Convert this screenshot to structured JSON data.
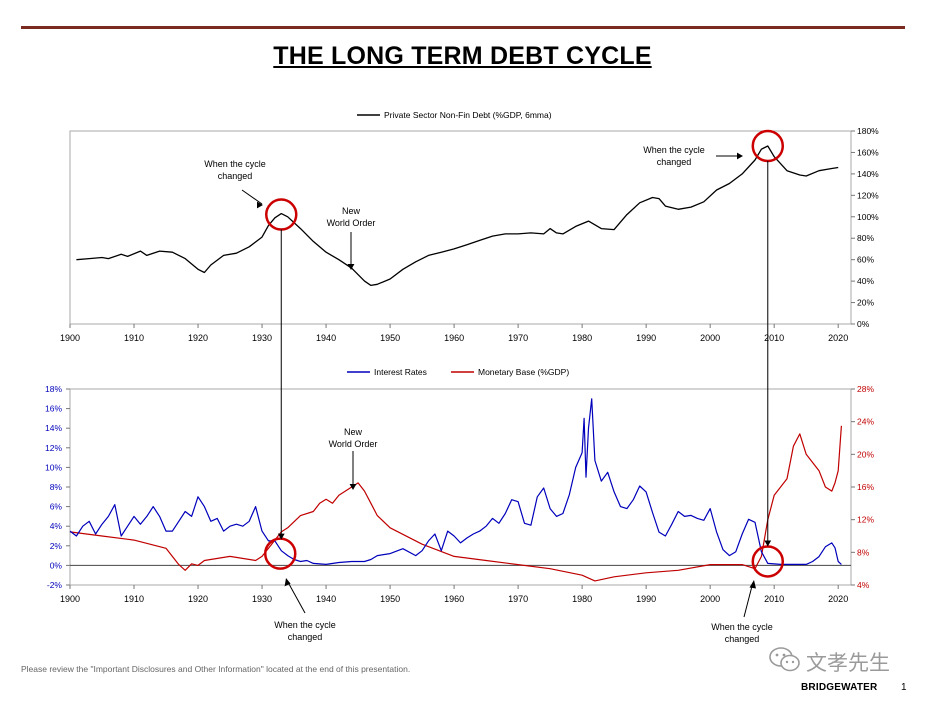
{
  "title": "THE LONG TERM DEBT CYCLE",
  "disclaimer": "Please review the \"Important Disclosures and Other Information\" located at the end of this presentation.",
  "brand": "BRIDGEWATER",
  "page_number": "1",
  "watermark": "文孝先生",
  "watermark_icon": "wechat-icon",
  "colors": {
    "rule": "#7a2a1e",
    "debt": "#000000",
    "rates": "#0000bb",
    "base": "#c00000",
    "circle": "#cc0000",
    "axis": "#777777"
  },
  "chart_data": [
    {
      "type": "line",
      "legend": {
        "position": "top-center",
        "items": [
          "Private Sector Non-Fin Debt (%GDP, 6mma)"
        ]
      },
      "xlim": [
        1900,
        2022
      ],
      "x_ticks": [
        "1900",
        "1910",
        "1920",
        "1930",
        "1940",
        "1950",
        "1960",
        "1970",
        "1980",
        "1990",
        "2000",
        "2010",
        "2020"
      ],
      "ylim": [
        0,
        180
      ],
      "y_axis_side": "right",
      "y_ticks": [
        "0%",
        "20%",
        "40%",
        "60%",
        "80%",
        "100%",
        "120%",
        "140%",
        "160%",
        "180%"
      ],
      "series": [
        {
          "name": "Private Sector Non-Fin Debt (%GDP, 6mma)",
          "color": "#000000",
          "points": [
            [
              1901,
              60
            ],
            [
              1903,
              61
            ],
            [
              1905,
              62
            ],
            [
              1906,
              61
            ],
            [
              1908,
              65
            ],
            [
              1909,
              63
            ],
            [
              1911,
              68
            ],
            [
              1912,
              64
            ],
            [
              1914,
              68
            ],
            [
              1916,
              67
            ],
            [
              1918,
              61
            ],
            [
              1920,
              51
            ],
            [
              1921,
              48
            ],
            [
              1922,
              55
            ],
            [
              1924,
              64
            ],
            [
              1926,
              66
            ],
            [
              1928,
              72
            ],
            [
              1930,
              81
            ],
            [
              1931,
              92
            ],
            [
              1932,
              99
            ],
            [
              1933,
              103
            ],
            [
              1934,
              100
            ],
            [
              1936,
              89
            ],
            [
              1938,
              77
            ],
            [
              1940,
              67
            ],
            [
              1942,
              60
            ],
            [
              1944,
              52
            ],
            [
              1946,
              40
            ],
            [
              1947,
              36
            ],
            [
              1948,
              37
            ],
            [
              1950,
              42
            ],
            [
              1952,
              51
            ],
            [
              1954,
              58
            ],
            [
              1956,
              64
            ],
            [
              1958,
              67
            ],
            [
              1960,
              70
            ],
            [
              1962,
              74
            ],
            [
              1964,
              78
            ],
            [
              1966,
              82
            ],
            [
              1968,
              84
            ],
            [
              1970,
              84
            ],
            [
              1972,
              85
            ],
            [
              1974,
              84
            ],
            [
              1975,
              89
            ],
            [
              1976,
              85
            ],
            [
              1977,
              84
            ],
            [
              1979,
              91
            ],
            [
              1981,
              96
            ],
            [
              1983,
              89
            ],
            [
              1985,
              88
            ],
            [
              1987,
              102
            ],
            [
              1989,
              113
            ],
            [
              1991,
              118
            ],
            [
              1992,
              117
            ],
            [
              1993,
              110
            ],
            [
              1995,
              107
            ],
            [
              1997,
              109
            ],
            [
              1999,
              114
            ],
            [
              2001,
              125
            ],
            [
              2003,
              131
            ],
            [
              2005,
              140
            ],
            [
              2007,
              153
            ],
            [
              2008,
              163
            ],
            [
              2009,
              166
            ],
            [
              2010,
              156
            ],
            [
              2012,
              143
            ],
            [
              2014,
              139
            ],
            [
              2015,
              138
            ],
            [
              2017,
              143
            ],
            [
              2019,
              145
            ],
            [
              2020,
              146
            ]
          ]
        }
      ],
      "annotations": [
        {
          "text": [
            "When the cycle",
            "changed"
          ],
          "x": 1933,
          "y": 103,
          "marker": "circle"
        },
        {
          "text": [
            "New",
            "World Order"
          ],
          "x": 1944,
          "y": 52,
          "marker": "arrow"
        },
        {
          "text": [
            "When the cycle",
            "changed"
          ],
          "x": 2009,
          "y": 166,
          "marker": "circle"
        }
      ]
    },
    {
      "type": "line",
      "legend": {
        "position": "top-center",
        "items": [
          "Interest Rates",
          "Monetary Base (%GDP)"
        ]
      },
      "xlim": [
        1900,
        2022
      ],
      "x_ticks": [
        "1900",
        "1910",
        "1920",
        "1930",
        "1940",
        "1950",
        "1960",
        "1970",
        "1980",
        "1990",
        "2000",
        "2010",
        "2020"
      ],
      "ylim_left": [
        -2,
        18
      ],
      "y_ticks_left": [
        "-2%",
        "0%",
        "2%",
        "4%",
        "6%",
        "8%",
        "10%",
        "12%",
        "14%",
        "16%",
        "18%"
      ],
      "ylim_right": [
        4,
        28
      ],
      "y_ticks_right": [
        "4%",
        "8%",
        "12%",
        "16%",
        "20%",
        "24%",
        "28%"
      ],
      "series": [
        {
          "name": "Interest Rates",
          "axis": "left",
          "color": "#0000bb",
          "points": [
            [
              1900,
              3.5
            ],
            [
              1901,
              3
            ],
            [
              1902,
              4
            ],
            [
              1903,
              4.5
            ],
            [
              1904,
              3.2
            ],
            [
              1905,
              4.2
            ],
            [
              1906,
              5
            ],
            [
              1907,
              6.2
            ],
            [
              1908,
              3
            ],
            [
              1909,
              4
            ],
            [
              1910,
              5
            ],
            [
              1911,
              4.2
            ],
            [
              1912,
              5
            ],
            [
              1913,
              6
            ],
            [
              1914,
              5
            ],
            [
              1915,
              3.5
            ],
            [
              1916,
              3.5
            ],
            [
              1917,
              4.5
            ],
            [
              1918,
              5.5
            ],
            [
              1919,
              5
            ],
            [
              1920,
              7
            ],
            [
              1921,
              6
            ],
            [
              1922,
              4.5
            ],
            [
              1923,
              4.8
            ],
            [
              1924,
              3.5
            ],
            [
              1925,
              4
            ],
            [
              1926,
              4.2
            ],
            [
              1927,
              4
            ],
            [
              1928,
              4.5
            ],
            [
              1929,
              6
            ],
            [
              1930,
              3.5
            ],
            [
              1931,
              2.5
            ],
            [
              1932,
              2.5
            ],
            [
              1933,
              1.5
            ],
            [
              1934,
              1
            ],
            [
              1935,
              0.6
            ],
            [
              1936,
              0.4
            ],
            [
              1937,
              0.5
            ],
            [
              1938,
              0.2
            ],
            [
              1940,
              0.1
            ],
            [
              1942,
              0.3
            ],
            [
              1944,
              0.4
            ],
            [
              1946,
              0.4
            ],
            [
              1947,
              0.6
            ],
            [
              1948,
              1.0
            ],
            [
              1950,
              1.2
            ],
            [
              1952,
              1.7
            ],
            [
              1954,
              1.0
            ],
            [
              1955,
              1.5
            ],
            [
              1956,
              2.5
            ],
            [
              1957,
              3.2
            ],
            [
              1958,
              1.5
            ],
            [
              1959,
              3.5
            ],
            [
              1960,
              3.0
            ],
            [
              1961,
              2.3
            ],
            [
              1962,
              2.8
            ],
            [
              1963,
              3.2
            ],
            [
              1964,
              3.5
            ],
            [
              1965,
              4.0
            ],
            [
              1966,
              4.8
            ],
            [
              1967,
              4.3
            ],
            [
              1968,
              5.3
            ],
            [
              1969,
              6.7
            ],
            [
              1970,
              6.5
            ],
            [
              1971,
              4.3
            ],
            [
              1972,
              4.1
            ],
            [
              1973,
              7.0
            ],
            [
              1974,
              7.9
            ],
            [
              1975,
              5.8
            ],
            [
              1976,
              5.0
            ],
            [
              1977,
              5.3
            ],
            [
              1978,
              7.2
            ],
            [
              1979,
              10.0
            ],
            [
              1980,
              11.5
            ],
            [
              1980.3,
              15
            ],
            [
              1980.6,
              9
            ],
            [
              1981,
              14.0
            ],
            [
              1981.5,
              17.0
            ],
            [
              1982,
              10.7
            ],
            [
              1983,
              8.6
            ],
            [
              1984,
              9.5
            ],
            [
              1985,
              7.5
            ],
            [
              1986,
              6.0
            ],
            [
              1987,
              5.8
            ],
            [
              1988,
              6.7
            ],
            [
              1989,
              8.1
            ],
            [
              1990,
              7.5
            ],
            [
              1991,
              5.4
            ],
            [
              1992,
              3.4
            ],
            [
              1993,
              3.0
            ],
            [
              1994,
              4.2
            ],
            [
              1995,
              5.5
            ],
            [
              1996,
              5.0
            ],
            [
              1997,
              5.1
            ],
            [
              1998,
              4.8
            ],
            [
              1999,
              4.6
            ],
            [
              2000,
              5.8
            ],
            [
              2001,
              3.4
            ],
            [
              2002,
              1.6
            ],
            [
              2003,
              1.0
            ],
            [
              2004,
              1.4
            ],
            [
              2005,
              3.2
            ],
            [
              2006,
              4.7
            ],
            [
              2007,
              4.4
            ],
            [
              2008,
              1.4
            ],
            [
              2009,
              0.2
            ],
            [
              2011,
              0.1
            ],
            [
              2013,
              0.1
            ],
            [
              2015,
              0.1
            ],
            [
              2016,
              0.4
            ],
            [
              2017,
              0.9
            ],
            [
              2018,
              1.9
            ],
            [
              2019,
              2.3
            ],
            [
              2019.5,
              1.8
            ],
            [
              2020,
              0.4
            ],
            [
              2020.5,
              0.1
            ]
          ]
        },
        {
          "name": "Monetary Base (%GDP)",
          "axis": "right",
          "color": "#c00000",
          "points": [
            [
              1900,
              10.5
            ],
            [
              1905,
              10
            ],
            [
              1910,
              9.5
            ],
            [
              1915,
              8.5
            ],
            [
              1917,
              6.5
            ],
            [
              1918,
              5.8
            ],
            [
              1919,
              6.6
            ],
            [
              1920,
              6.4
            ],
            [
              1921,
              7.0
            ],
            [
              1925,
              7.5
            ],
            [
              1929,
              7.0
            ],
            [
              1930,
              7.5
            ],
            [
              1931,
              8.5
            ],
            [
              1932,
              9.5
            ],
            [
              1933,
              10.5
            ],
            [
              1934,
              11
            ],
            [
              1936,
              12.5
            ],
            [
              1938,
              13
            ],
            [
              1939,
              14
            ],
            [
              1940,
              14.5
            ],
            [
              1941,
              14
            ],
            [
              1942,
              15
            ],
            [
              1943,
              15.5
            ],
            [
              1944,
              16
            ],
            [
              1945,
              16.5
            ],
            [
              1946,
              15.5
            ],
            [
              1947,
              14
            ],
            [
              1948,
              12.5
            ],
            [
              1950,
              11
            ],
            [
              1955,
              9
            ],
            [
              1960,
              7.5
            ],
            [
              1965,
              7
            ],
            [
              1970,
              6.5
            ],
            [
              1975,
              6
            ],
            [
              1980,
              5.2
            ],
            [
              1982,
              4.5
            ],
            [
              1985,
              5
            ],
            [
              1990,
              5.5
            ],
            [
              1995,
              5.8
            ],
            [
              2000,
              6.5
            ],
            [
              2005,
              6.5
            ],
            [
              2007,
              6
            ],
            [
              2008,
              7.5
            ],
            [
              2009,
              12
            ],
            [
              2010,
              15
            ],
            [
              2011,
              16
            ],
            [
              2012,
              17
            ],
            [
              2013,
              21
            ],
            [
              2014,
              22.5
            ],
            [
              2015,
              20
            ],
            [
              2016,
              19
            ],
            [
              2017,
              18
            ],
            [
              2018,
              16
            ],
            [
              2019,
              15.5
            ],
            [
              2019.5,
              16.5
            ],
            [
              2020,
              18
            ],
            [
              2020.5,
              23.5
            ]
          ]
        }
      ],
      "annotations": [
        {
          "text": [
            "When the cycle",
            "changed"
          ],
          "x": 1933,
          "y": 1,
          "marker": "circle"
        },
        {
          "text": [
            "New",
            "World Order"
          ],
          "x": 1945,
          "y": 16.5,
          "marker": "arrow"
        },
        {
          "text": [
            "When the cycle",
            "changed"
          ],
          "x": 2009,
          "y": 0.2,
          "marker": "circle"
        }
      ]
    }
  ]
}
